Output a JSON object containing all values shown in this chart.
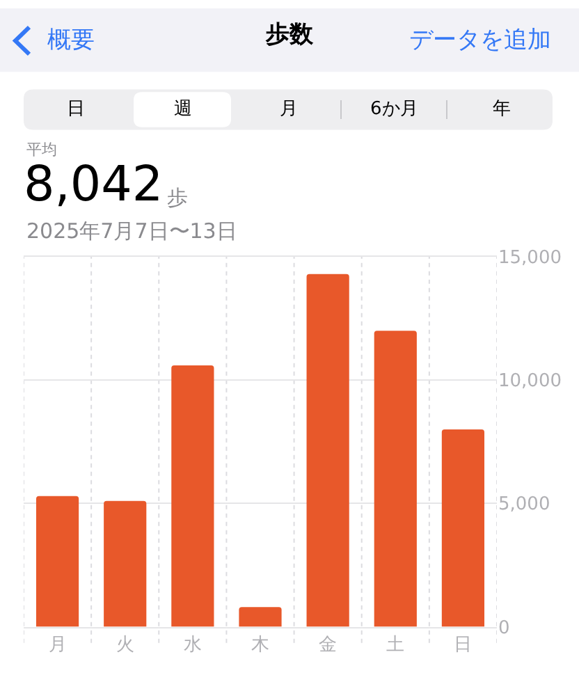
{
  "chart_data": {
    "type": "bar",
    "title": "歩数",
    "annotations": [
      "概要",
      "データを追加",
      "日",
      "週",
      "月",
      "6か月",
      "年",
      "平均",
      "8,042",
      "歩",
      "2025年7月7日〜13日"
    ],
    "categories": [
      "月",
      "火",
      "水",
      "木",
      "金",
      "土",
      "日"
    ],
    "values": [
      5300,
      5100,
      10600,
      800,
      14300,
      12000,
      8000
    ],
    "color": "#e8582a",
    "ylim": [
      0,
      15000
    ],
    "yticks": [
      0,
      {
        "value": 5000,
        "label": "5,000"
      },
      {
        "value": 10000,
        "label": "10,000"
      },
      {
        "value": 15000,
        "label": "15,000"
      }
    ],
    "grid": true
  }
}
